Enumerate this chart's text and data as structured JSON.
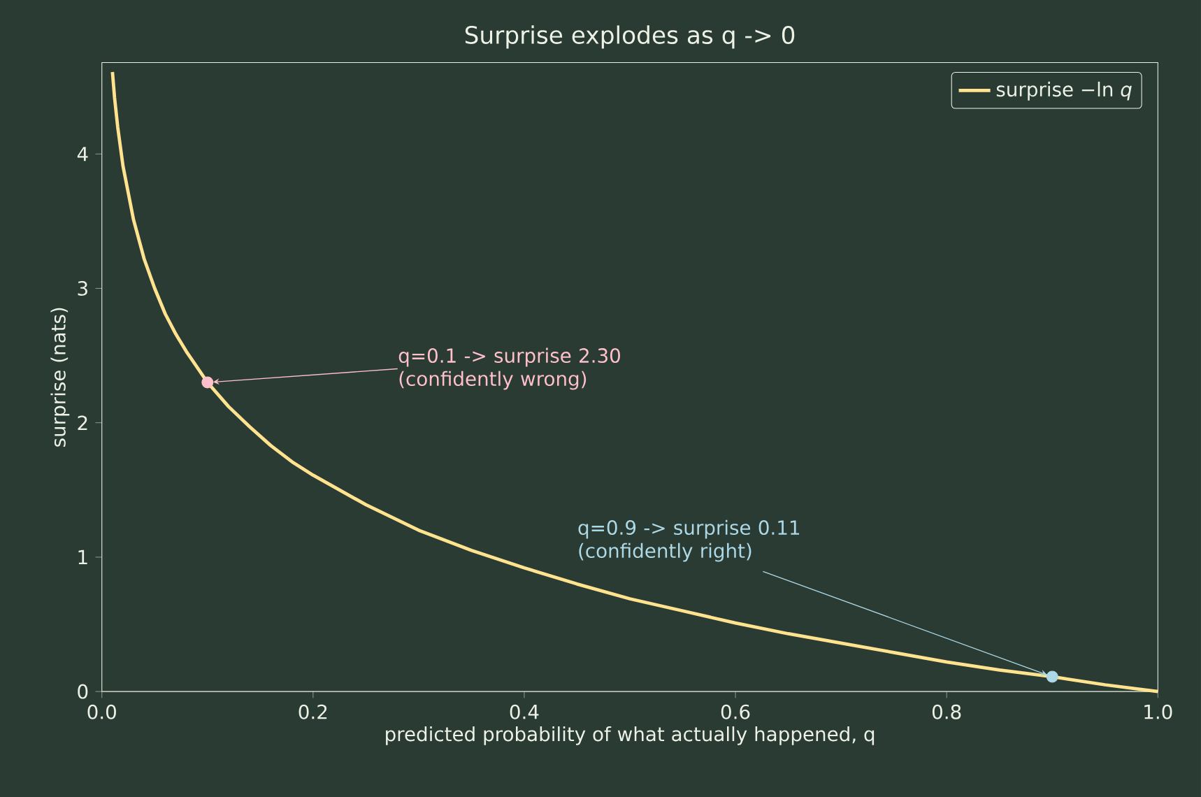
{
  "chart_data": {
    "type": "line",
    "title": "Surprise explodes as q -> 0",
    "xlabel": "predicted probability of what actually happened, q",
    "ylabel": "surprise (nats)",
    "xlim": [
      0.0,
      1.0
    ],
    "ylim": [
      0,
      4.68
    ],
    "xticks": [
      {
        "value": 0,
        "label": "0.0"
      },
      0.2,
      0.4,
      0.6,
      0.8,
      {
        "value": 1,
        "label": "1.0"
      }
    ],
    "yticks": [
      0,
      1,
      2,
      3,
      4
    ],
    "series": [
      {
        "name": "surprise −ln *q*",
        "type": "line",
        "color": "#ffe38f",
        "x": [
          0.01,
          0.012,
          0.015,
          0.02,
          0.03,
          0.04,
          0.05,
          0.06,
          0.07,
          0.08,
          0.1,
          0.12,
          0.14,
          0.16,
          0.18,
          0.2,
          0.25,
          0.3,
          0.35,
          0.4,
          0.45,
          0.5,
          0.55,
          0.6,
          0.65,
          0.7,
          0.75,
          0.8,
          0.85,
          0.9,
          0.95,
          1.0
        ],
        "values": [
          4.61,
          4.42,
          4.2,
          3.91,
          3.51,
          3.22,
          3.0,
          2.81,
          2.66,
          2.53,
          2.3,
          2.12,
          1.97,
          1.83,
          1.71,
          1.61,
          1.39,
          1.2,
          1.05,
          0.92,
          0.8,
          0.69,
          0.6,
          0.51,
          0.43,
          0.36,
          0.29,
          0.22,
          0.16,
          0.11,
          0.05,
          0.0
        ]
      },
      {
        "type": "scatter",
        "color": "#ffc0cb",
        "x": [
          0.1
        ],
        "values": [
          2.3
        ],
        "marker": "circle"
      },
      {
        "type": "scatter",
        "color": "#add8e6",
        "x": [
          0.9
        ],
        "values": [
          0.11
        ],
        "marker": "circle"
      }
    ],
    "annotations": [
      {
        "text": "q=0.1 -> surprise 2.30 (confidently wrong)",
        "x": 0.1,
        "y": 2.3
      },
      {
        "text": "q=0.9 -> surprise 0.11 (confidently right)",
        "x": 0.9,
        "y": 0.11
      }
    ],
    "legend": "top right",
    "grid": false
  }
}
